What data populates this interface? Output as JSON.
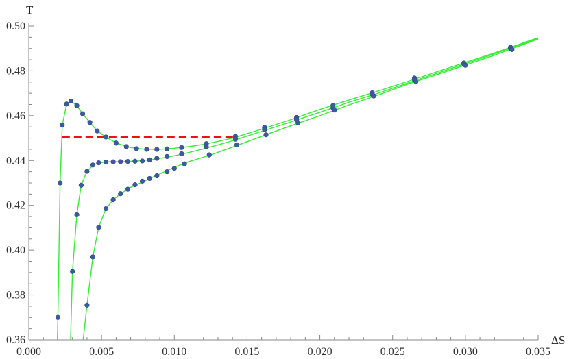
{
  "chart_data": {
    "type": "scatter",
    "xlabel": "ΔS",
    "ylabel": "T",
    "xlim": [
      0.0,
      0.035
    ],
    "ylim": [
      0.36,
      0.5
    ],
    "x_ticks": [
      "0.000",
      "0.005",
      "0.010",
      "0.015",
      "0.020",
      "0.025",
      "0.030",
      "0.035"
    ],
    "y_ticks": [
      "0.36",
      "0.38",
      "0.40",
      "0.42",
      "0.44",
      "0.46",
      "0.48",
      "0.50"
    ],
    "grid": false,
    "colors": {
      "curve": "#33ee33",
      "point": "#3d5a9e",
      "maxwell_line": "#ee1111",
      "axis": "#888888"
    },
    "series": [
      {
        "curve": [
          [
            0.00195,
            0.355
          ],
          [
            0.002,
            0.37
          ],
          [
            0.00215,
            0.43
          ],
          [
            0.0023,
            0.4558
          ],
          [
            0.0026,
            0.4652
          ],
          [
            0.0029,
            0.4665
          ],
          [
            0.0033,
            0.4645
          ],
          [
            0.0037,
            0.4608
          ],
          [
            0.0042,
            0.457
          ],
          [
            0.0047,
            0.4532
          ],
          [
            0.0053,
            0.4505
          ],
          [
            0.006,
            0.4478
          ],
          [
            0.007,
            0.4458
          ],
          [
            0.008,
            0.445
          ],
          [
            0.009,
            0.445
          ],
          [
            0.01,
            0.4455
          ],
          [
            0.011,
            0.4462
          ],
          [
            0.012,
            0.4472
          ],
          [
            0.013,
            0.4485
          ],
          [
            0.014,
            0.45
          ],
          [
            0.016,
            0.454
          ],
          [
            0.018,
            0.4582
          ],
          [
            0.02,
            0.4628
          ],
          [
            0.022,
            0.467
          ],
          [
            0.024,
            0.471
          ],
          [
            0.026,
            0.4752
          ],
          [
            0.028,
            0.4795
          ],
          [
            0.03,
            0.4838
          ],
          [
            0.032,
            0.488
          ],
          [
            0.035,
            0.4948
          ]
        ],
        "points": [
          [
            0.002,
            0.37
          ],
          [
            0.00215,
            0.43
          ],
          [
            0.0023,
            0.4558
          ],
          [
            0.0026,
            0.4652
          ],
          [
            0.0029,
            0.4665
          ],
          [
            0.0033,
            0.4645
          ],
          [
            0.0037,
            0.4608
          ],
          [
            0.0042,
            0.457
          ],
          [
            0.0047,
            0.4532
          ],
          [
            0.0053,
            0.4505
          ],
          [
            0.006,
            0.4478
          ],
          [
            0.0067,
            0.4462
          ],
          [
            0.0074,
            0.4453
          ],
          [
            0.0081,
            0.445
          ],
          [
            0.0088,
            0.445
          ],
          [
            0.0095,
            0.4452
          ],
          [
            0.0105,
            0.4458
          ],
          [
            0.0122,
            0.4475
          ],
          [
            0.0142,
            0.4508
          ],
          [
            0.0162,
            0.4548
          ],
          [
            0.0184,
            0.4592
          ],
          [
            0.0209,
            0.4645
          ],
          [
            0.0236,
            0.4702
          ],
          [
            0.0265,
            0.4768
          ],
          [
            0.0299,
            0.4835
          ],
          [
            0.0331,
            0.4905
          ]
        ]
      },
      {
        "curve": [
          [
            0.00285,
            0.355
          ],
          [
            0.003,
            0.3905
          ],
          [
            0.0033,
            0.4158
          ],
          [
            0.0036,
            0.429
          ],
          [
            0.004,
            0.4352
          ],
          [
            0.0044,
            0.4378
          ],
          [
            0.0048,
            0.439
          ],
          [
            0.0055,
            0.4394
          ],
          [
            0.0065,
            0.4395
          ],
          [
            0.0075,
            0.4398
          ],
          [
            0.0085,
            0.4405
          ],
          [
            0.0095,
            0.4415
          ],
          [
            0.0105,
            0.4428
          ],
          [
            0.012,
            0.4452
          ],
          [
            0.014,
            0.4488
          ],
          [
            0.016,
            0.453
          ],
          [
            0.018,
            0.4572
          ],
          [
            0.02,
            0.4615
          ],
          [
            0.022,
            0.466
          ],
          [
            0.024,
            0.47
          ],
          [
            0.026,
            0.4745
          ],
          [
            0.028,
            0.4788
          ],
          [
            0.03,
            0.4832
          ],
          [
            0.032,
            0.4876
          ],
          [
            0.035,
            0.4945
          ]
        ],
        "points": [
          [
            0.003,
            0.3905
          ],
          [
            0.0033,
            0.4158
          ],
          [
            0.0036,
            0.429
          ],
          [
            0.004,
            0.4352
          ],
          [
            0.0044,
            0.438
          ],
          [
            0.0048,
            0.439
          ],
          [
            0.0053,
            0.4393
          ],
          [
            0.0058,
            0.4394
          ],
          [
            0.0063,
            0.4395
          ],
          [
            0.0068,
            0.4396
          ],
          [
            0.0073,
            0.4397
          ],
          [
            0.0078,
            0.4398
          ],
          [
            0.0083,
            0.4403
          ],
          [
            0.0088,
            0.441
          ],
          [
            0.0095,
            0.4418
          ],
          [
            0.0105,
            0.443
          ],
          [
            0.0122,
            0.4462
          ],
          [
            0.0142,
            0.4495
          ],
          [
            0.0162,
            0.4538
          ],
          [
            0.0184,
            0.4582
          ],
          [
            0.0209,
            0.4635
          ],
          [
            0.0236,
            0.4695
          ],
          [
            0.0265,
            0.476
          ],
          [
            0.0299,
            0.483
          ],
          [
            0.0331,
            0.49
          ]
        ]
      },
      {
        "curve": [
          [
            0.00365,
            0.355
          ],
          [
            0.004,
            0.3755
          ],
          [
            0.0044,
            0.397
          ],
          [
            0.0048,
            0.4102
          ],
          [
            0.0053,
            0.4185
          ],
          [
            0.0058,
            0.4225
          ],
          [
            0.0063,
            0.4252
          ],
          [
            0.007,
            0.428
          ],
          [
            0.008,
            0.431
          ],
          [
            0.009,
            0.434
          ],
          [
            0.01,
            0.437
          ],
          [
            0.011,
            0.4395
          ],
          [
            0.0125,
            0.4425
          ],
          [
            0.014,
            0.446
          ],
          [
            0.016,
            0.4508
          ],
          [
            0.018,
            0.4555
          ],
          [
            0.02,
            0.46
          ],
          [
            0.022,
            0.4648
          ],
          [
            0.024,
            0.4692
          ],
          [
            0.026,
            0.474
          ],
          [
            0.028,
            0.4782
          ],
          [
            0.03,
            0.4826
          ],
          [
            0.032,
            0.487
          ],
          [
            0.035,
            0.4942
          ]
        ],
        "points": [
          [
            0.004,
            0.3755
          ],
          [
            0.0044,
            0.397
          ],
          [
            0.0048,
            0.4102
          ],
          [
            0.0053,
            0.4185
          ],
          [
            0.0058,
            0.4225
          ],
          [
            0.0063,
            0.4252
          ],
          [
            0.0068,
            0.4272
          ],
          [
            0.0073,
            0.4292
          ],
          [
            0.0078,
            0.4308
          ],
          [
            0.0083,
            0.432
          ],
          [
            0.0088,
            0.4332
          ],
          [
            0.0095,
            0.435
          ],
          [
            0.01,
            0.4365
          ],
          [
            0.0107,
            0.4385
          ],
          [
            0.0124,
            0.4425
          ],
          [
            0.0143,
            0.447
          ],
          [
            0.0163,
            0.4515
          ],
          [
            0.0185,
            0.4568
          ],
          [
            0.021,
            0.4625
          ],
          [
            0.0237,
            0.4688
          ],
          [
            0.0266,
            0.4752
          ],
          [
            0.03,
            0.4825
          ],
          [
            0.0332,
            0.4895
          ]
        ]
      }
    ],
    "maxwell_line": {
      "x": [
        0.0023,
        0.0142
      ],
      "y": 0.4505,
      "style": "dashed"
    }
  }
}
